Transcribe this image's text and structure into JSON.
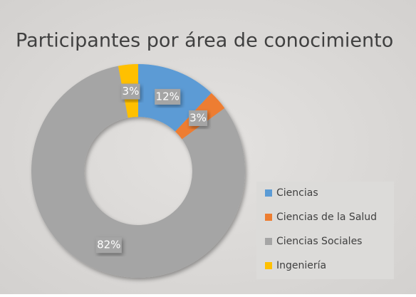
{
  "chart_data": {
    "type": "donut",
    "title": "Participantes por área de conocimiento",
    "categories": [
      "Ciencias",
      "Ciencias de la Salud",
      "Ciencias Sociales",
      "Ingeniería"
    ],
    "values": [
      12,
      3,
      82,
      3
    ],
    "value_labels": [
      "12%",
      "3%",
      "82%",
      "3%"
    ],
    "colors": [
      "#5b9bd5",
      "#ed7d31",
      "#a5a5a5",
      "#ffc000"
    ],
    "legend": "right"
  }
}
